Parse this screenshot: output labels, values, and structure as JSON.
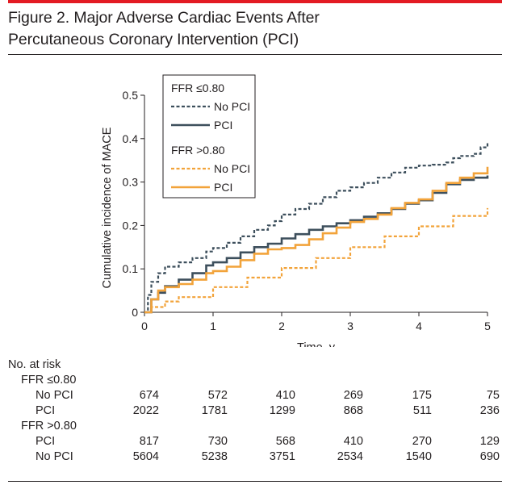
{
  "figure": {
    "title_line1": "Figure 2. Major Adverse Cardiac Events After",
    "title_line2": "Percutaneous Coronary Intervention (PCI)",
    "accent_color": "#e31b23"
  },
  "chart_data": {
    "type": "line",
    "title": "",
    "xlabel": "Time, y",
    "ylabel": "Cumulative incidence of MACE",
    "xlim": [
      0,
      5
    ],
    "ylim": [
      0,
      0.5
    ],
    "xticks": [
      0,
      1,
      2,
      3,
      4,
      5
    ],
    "xtick_labels": [
      "0",
      "1",
      "2",
      "3",
      "4",
      "5"
    ],
    "yticks": [
      0,
      0.1,
      0.2,
      0.3,
      0.4,
      0.5
    ],
    "ytick_labels": [
      "0",
      "0.1",
      "0.2",
      "0.3",
      "0.4",
      "0.5"
    ],
    "grid": false,
    "legend_position": "top-left",
    "legend_groups": [
      {
        "title": "FFR ≤0.80",
        "entries": [
          {
            "label": "No PCI",
            "series": 0
          },
          {
            "label": "PCI",
            "series": 1
          }
        ]
      },
      {
        "title": "FFR >0.80",
        "entries": [
          {
            "label": "No PCI",
            "series": 2
          },
          {
            "label": "PCI",
            "series": 3
          }
        ]
      }
    ],
    "series": [
      {
        "name": "No PCI",
        "group": "FFR ≤0.80",
        "color": "#3d4f5c",
        "dashed": true,
        "x": [
          0,
          0.05,
          0.1,
          0.2,
          0.3,
          0.5,
          0.7,
          0.9,
          1.0,
          1.2,
          1.4,
          1.6,
          1.8,
          1.9,
          2.0,
          2.2,
          2.4,
          2.6,
          2.8,
          3.0,
          3.2,
          3.4,
          3.6,
          3.8,
          4.0,
          4.2,
          4.4,
          4.5,
          4.6,
          4.8,
          4.9,
          5.0
        ],
        "y": [
          0,
          0.04,
          0.07,
          0.09,
          0.105,
          0.115,
          0.125,
          0.14,
          0.148,
          0.16,
          0.175,
          0.19,
          0.2,
          0.21,
          0.225,
          0.238,
          0.25,
          0.265,
          0.28,
          0.288,
          0.298,
          0.31,
          0.322,
          0.333,
          0.338,
          0.34,
          0.345,
          0.355,
          0.36,
          0.365,
          0.38,
          0.39
        ]
      },
      {
        "name": "PCI",
        "group": "FFR ≤0.80",
        "color": "#3d4f5c",
        "dashed": false,
        "x": [
          0,
          0.1,
          0.2,
          0.3,
          0.5,
          0.7,
          0.9,
          1.0,
          1.2,
          1.4,
          1.6,
          1.8,
          2.0,
          2.2,
          2.4,
          2.6,
          2.8,
          3.0,
          3.2,
          3.4,
          3.6,
          3.8,
          4.0,
          4.2,
          4.4,
          4.6,
          4.8,
          5.0
        ],
        "y": [
          0,
          0.03,
          0.045,
          0.06,
          0.075,
          0.09,
          0.108,
          0.115,
          0.125,
          0.138,
          0.15,
          0.158,
          0.17,
          0.18,
          0.19,
          0.198,
          0.205,
          0.212,
          0.22,
          0.228,
          0.238,
          0.25,
          0.258,
          0.275,
          0.295,
          0.305,
          0.31,
          0.315
        ]
      },
      {
        "name": "No PCI",
        "group": "FFR >0.80",
        "color": "#f2a33a",
        "dashed": true,
        "x": [
          0,
          0.1,
          0.3,
          0.5,
          1.0,
          1.5,
          2.0,
          2.5,
          3.0,
          3.5,
          4.0,
          4.5,
          5.0
        ],
        "y": [
          0,
          0.012,
          0.025,
          0.035,
          0.058,
          0.08,
          0.102,
          0.125,
          0.15,
          0.175,
          0.198,
          0.222,
          0.24
        ]
      },
      {
        "name": "PCI",
        "group": "FFR >0.80",
        "color": "#f2a33a",
        "dashed": false,
        "x": [
          0,
          0.1,
          0.2,
          0.3,
          0.5,
          0.7,
          0.9,
          1.0,
          1.2,
          1.4,
          1.6,
          1.8,
          2.0,
          2.2,
          2.4,
          2.6,
          2.8,
          3.0,
          3.2,
          3.4,
          3.6,
          3.8,
          4.0,
          4.2,
          4.4,
          4.6,
          4.8,
          5.0
        ],
        "y": [
          0,
          0.03,
          0.05,
          0.058,
          0.065,
          0.075,
          0.09,
          0.095,
          0.105,
          0.12,
          0.135,
          0.145,
          0.148,
          0.155,
          0.168,
          0.182,
          0.195,
          0.208,
          0.215,
          0.225,
          0.24,
          0.252,
          0.26,
          0.28,
          0.298,
          0.31,
          0.32,
          0.335
        ]
      }
    ]
  },
  "at_risk": {
    "heading": "No. at risk",
    "groups": [
      {
        "label": "FFR ≤0.80",
        "rows": [
          {
            "label": "No PCI",
            "values": [
              "674",
              "572",
              "410",
              "269",
              "175",
              "75"
            ]
          },
          {
            "label": "PCI",
            "values": [
              "2022",
              "1781",
              "1299",
              "868",
              "511",
              "236"
            ]
          }
        ]
      },
      {
        "label": "FFR >0.80",
        "rows": [
          {
            "label": "PCI",
            "values": [
              "817",
              "730",
              "568",
              "410",
              "270",
              "129"
            ]
          },
          {
            "label": "No PCI",
            "values": [
              "5604",
              "5238",
              "3751",
              "2534",
              "1540",
              "690"
            ]
          }
        ]
      }
    ]
  }
}
